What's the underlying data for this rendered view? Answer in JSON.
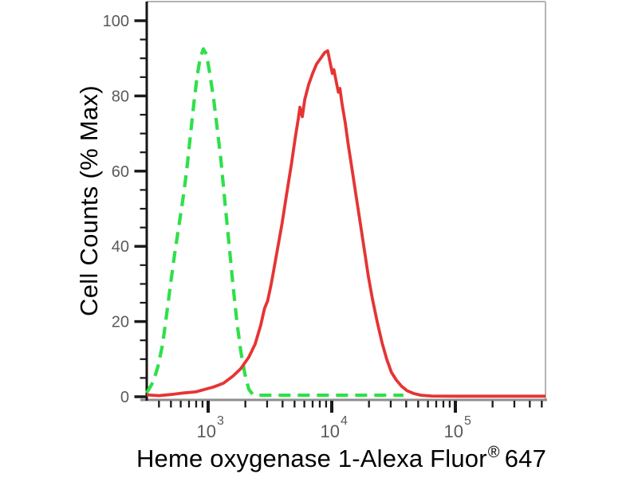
{
  "chart_data": {
    "type": "line",
    "subtype": "flow-cytometry-histogram",
    "title": "",
    "ylabel": "Cell Counts (% Max)",
    "xlabel": "Heme oxygenase 1-Alexa Fluor® 647",
    "xlabel_main": "Heme oxygenase 1-Alexa Fluor",
    "xlabel_registered_mark": "®",
    "xlabel_suffix": "647",
    "x_scale": "log10",
    "xlim": [
      320,
      540000
    ],
    "ylim": [
      0,
      100
    ],
    "y_major_ticks": [
      0,
      20,
      40,
      60,
      80,
      100
    ],
    "y_minor_tick_step": 5,
    "x_decade_ticks": [
      {
        "base": "10",
        "exponent": "3",
        "value": 1000
      },
      {
        "base": "10",
        "exponent": "4",
        "value": 10000
      },
      {
        "base": "10",
        "exponent": "5",
        "value": 100000
      }
    ],
    "grid": false,
    "legend": null,
    "colors": {
      "y_axis": "#161616",
      "x_axis": "#8e8e8e",
      "frame": "#b4b4b4",
      "ticks": "#1a1a1a",
      "tick_labels": "#5a5a5a",
      "control_green": "#2ee04a",
      "stained_red": "#e63434"
    },
    "series": [
      {
        "name": "negative-control",
        "line_style": "dashed",
        "color": "#2ee04a",
        "peak": {
          "x": 910,
          "pct": 92.5
        },
        "points": [
          [
            318,
            1
          ],
          [
            360,
            4
          ],
          [
            392,
            8
          ],
          [
            429,
            14
          ],
          [
            462,
            22
          ],
          [
            497,
            30
          ],
          [
            536,
            38
          ],
          [
            577,
            45
          ],
          [
            622,
            52
          ],
          [
            670,
            60
          ],
          [
            721,
            70
          ],
          [
            766,
            78
          ],
          [
            812,
            85
          ],
          [
            861,
            90
          ],
          [
            915,
            92.5
          ],
          [
            971,
            91
          ],
          [
            1030,
            86
          ],
          [
            1109,
            79
          ],
          [
            1178,
            72
          ],
          [
            1268,
            63
          ],
          [
            1365,
            52
          ],
          [
            1471,
            41
          ],
          [
            1585,
            30
          ],
          [
            1707,
            20
          ],
          [
            1840,
            12
          ],
          [
            1982,
            6
          ],
          [
            2133,
            2
          ],
          [
            2296,
            0.6
          ],
          [
            2600,
            0.4
          ],
          [
            3500,
            0.4
          ],
          [
            5000,
            0.4
          ],
          [
            8000,
            0.4
          ],
          [
            12000,
            0.4
          ],
          [
            20000,
            0.4
          ],
          [
            30000,
            0.4
          ],
          [
            38000,
            0.4
          ]
        ]
      },
      {
        "name": "heme-oxygenase-1-stained",
        "line_style": "solid",
        "color": "#e63434",
        "peak": {
          "x": 9300,
          "pct": 92
        },
        "points": [
          [
            318,
            0.5
          ],
          [
            400,
            0.3
          ],
          [
            500,
            0.6
          ],
          [
            630,
            1.0
          ],
          [
            790,
            1.3
          ],
          [
            950,
            2.0
          ],
          [
            1110,
            2.6
          ],
          [
            1330,
            3.6
          ],
          [
            1590,
            5.5
          ],
          [
            1840,
            7.5
          ],
          [
            2130,
            10.5
          ],
          [
            2400,
            14
          ],
          [
            2660,
            19
          ],
          [
            2860,
            23.5
          ],
          [
            3030,
            25.5
          ],
          [
            3240,
            30
          ],
          [
            3580,
            38
          ],
          [
            3960,
            46
          ],
          [
            4320,
            54
          ],
          [
            4720,
            62
          ],
          [
            5070,
            69
          ],
          [
            5370,
            74
          ],
          [
            5530,
            77
          ],
          [
            5780,
            74.5
          ],
          [
            6040,
            79
          ],
          [
            6500,
            83
          ],
          [
            7000,
            86
          ],
          [
            7540,
            88.5
          ],
          [
            8130,
            90
          ],
          [
            8750,
            91.5
          ],
          [
            9270,
            92
          ],
          [
            9680,
            89
          ],
          [
            10100,
            86
          ],
          [
            10390,
            87
          ],
          [
            10840,
            84
          ],
          [
            11310,
            81
          ],
          [
            11630,
            82
          ],
          [
            12100,
            78
          ],
          [
            12840,
            73
          ],
          [
            13610,
            67
          ],
          [
            14680,
            60
          ],
          [
            15810,
            53
          ],
          [
            17040,
            46
          ],
          [
            18360,
            39
          ],
          [
            19790,
            32
          ],
          [
            21330,
            26
          ],
          [
            23300,
            20
          ],
          [
            25450,
            14.5
          ],
          [
            27810,
            10
          ],
          [
            30380,
            6.5
          ],
          [
            33190,
            4.5
          ],
          [
            36700,
            2.8
          ],
          [
            40590,
            1.6
          ],
          [
            45690,
            0.9
          ],
          [
            52830,
            0.4
          ],
          [
            64230,
            0.2
          ],
          [
            100000,
            0.15
          ],
          [
            300000,
            0.15
          ],
          [
            536000,
            0.15
          ]
        ]
      }
    ]
  }
}
